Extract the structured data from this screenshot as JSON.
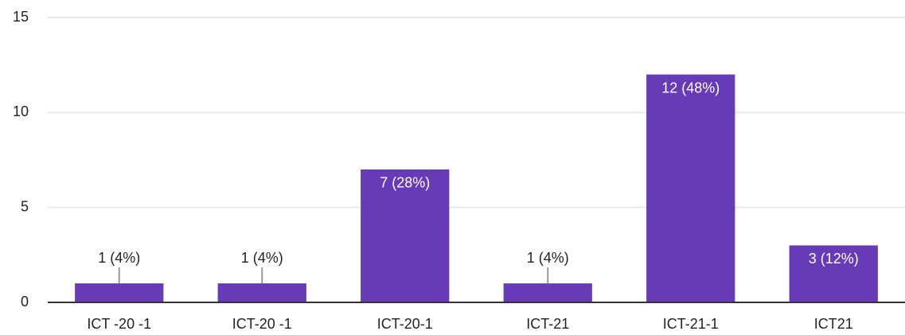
{
  "chart_data": {
    "type": "bar",
    "categories": [
      "ICT -20 -1",
      "ICT-20 -1",
      "ICT-20-1",
      "ICT-21",
      "ICT-21-1",
      "ICT21"
    ],
    "values": [
      1,
      1,
      7,
      1,
      12,
      3
    ],
    "value_labels": [
      "1 (4%)",
      "1 (4%)",
      "7 (28%)",
      "1 (4%)",
      "12 (48%)",
      "3 (12%)"
    ],
    "color": "#673ab7",
    "ylim": [
      0,
      15
    ],
    "yticks": [
      0,
      5,
      10,
      15
    ],
    "grid": true
  }
}
